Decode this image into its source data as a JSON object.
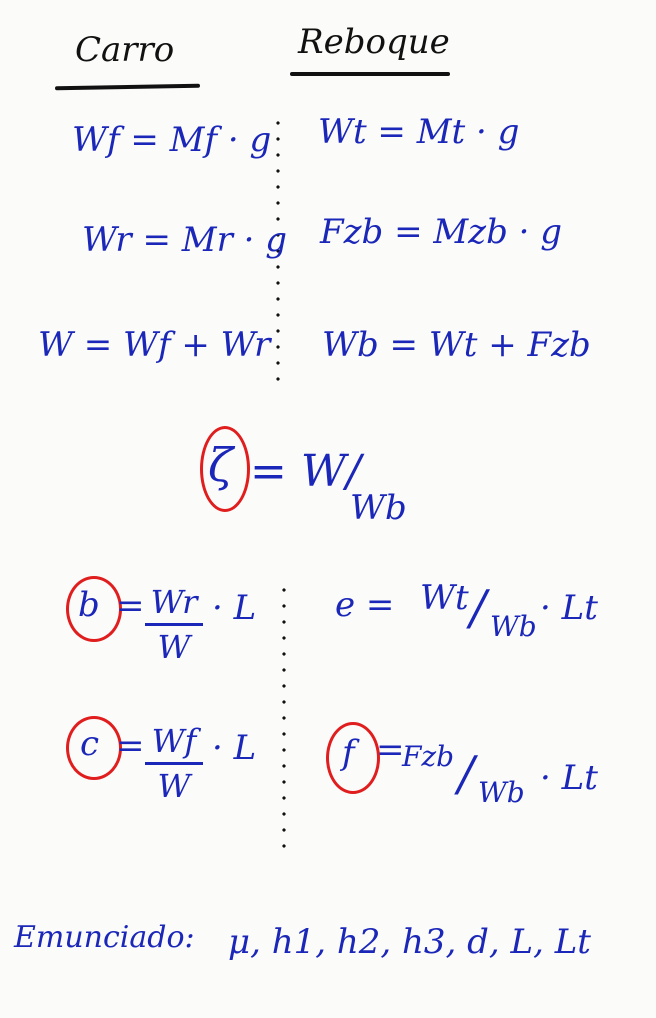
{
  "headers": {
    "left": "Carro",
    "right": "Reboque"
  },
  "rows": {
    "r1_left": "Wf = Mf · g",
    "r1_right": "Wt = Mt · g",
    "r2_left": "Wr = Mr · g",
    "r2_right": "Fzb = Mzb · g",
    "r3_left": "W = Wf + Wr",
    "r3_right": "Wb = Wt + Fzb"
  },
  "ratio": {
    "symbol": "ζ",
    "eq": "= W/",
    "den": "Wb"
  },
  "b_eq": {
    "var": "b",
    "num": "Wr",
    "den": "W",
    "tail": "· L"
  },
  "e_eq": {
    "lhs": "e =",
    "num": "Wt",
    "den": "Wb",
    "tail": "· Lt"
  },
  "c_eq": {
    "var": "c",
    "num": "Wf",
    "den": "W",
    "tail": "· L"
  },
  "f_eq": {
    "var": "f",
    "num": "Fzb",
    "den": "Wb",
    "tail": "· Lt"
  },
  "statement": {
    "label": "Emunciado:",
    "items": "μ, h1, h2, h3, d, L, Lt"
  }
}
